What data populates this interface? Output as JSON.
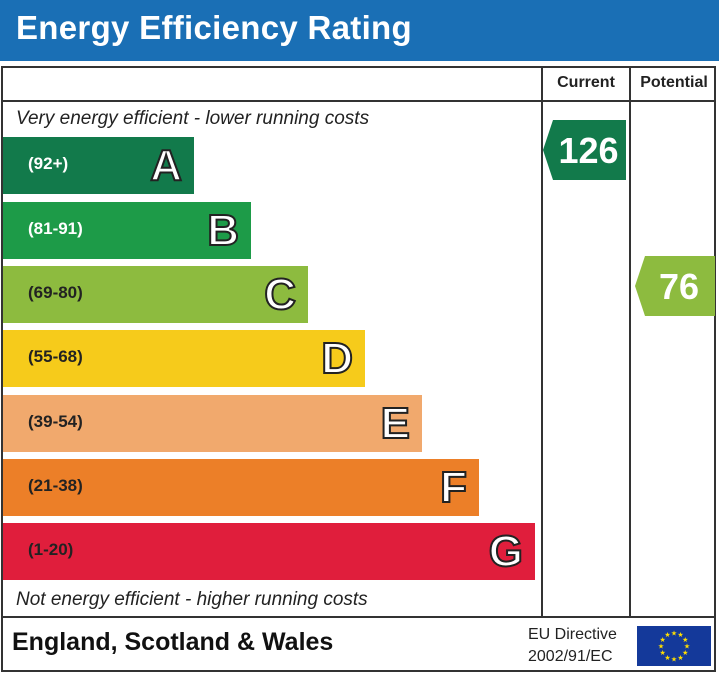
{
  "header": {
    "title": "Energy Efficiency Rating"
  },
  "columns": {
    "current": "Current",
    "potential": "Potential"
  },
  "notes": {
    "top": "Very energy efficient - lower running costs",
    "bottom": "Not energy efficient - higher running costs"
  },
  "bands": [
    {
      "range": "(92+)",
      "letter": "A",
      "color": "#127a4b",
      "range_color": "#ffffff"
    },
    {
      "range": "(81-91)",
      "letter": "B",
      "color": "#1d9b48",
      "range_color": "#ffffff"
    },
    {
      "range": "(69-80)",
      "letter": "C",
      "color": "#8dbb3f",
      "range_color": "#222222"
    },
    {
      "range": "(55-68)",
      "letter": "D",
      "color": "#f6cb1b",
      "range_color": "#222222"
    },
    {
      "range": "(39-54)",
      "letter": "E",
      "color": "#f1a96d",
      "range_color": "#222222"
    },
    {
      "range": "(21-38)",
      "letter": "F",
      "color": "#ec7f28",
      "range_color": "#222222"
    },
    {
      "range": "(1-20)",
      "letter": "G",
      "color": "#e01e3c",
      "range_color": "#222222"
    }
  ],
  "ratings": {
    "current": {
      "value": "126",
      "band": "A",
      "color": "#127a4b"
    },
    "potential": {
      "value": "76",
      "band": "C",
      "color": "#8dbb3f"
    }
  },
  "footer": {
    "region": "England, Scotland & Wales",
    "directive_line1": "EU Directive",
    "directive_line2": "2002/91/EC",
    "flag": "eu-flag-icon"
  }
}
